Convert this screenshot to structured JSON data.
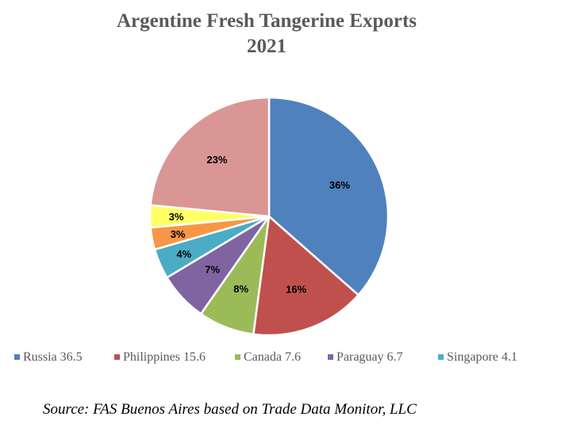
{
  "chart_data": {
    "type": "pie",
    "title": "Argentine Fresh Tangerine Exports",
    "subtitle": "2021",
    "slices": [
      {
        "label": "Russia",
        "value": 36.5,
        "percent_label": "36%",
        "color": "#4F81BD",
        "legend": "Russia 36.5"
      },
      {
        "label": "Philippines",
        "value": 15.6,
        "percent_label": "16%",
        "color": "#C0504D",
        "legend": "Philippines 15.6"
      },
      {
        "label": "Canada",
        "value": 7.6,
        "percent_label": "8%",
        "color": "#9BBB59",
        "legend": "Canada 7.6"
      },
      {
        "label": "Paraguay",
        "value": 6.7,
        "percent_label": "7%",
        "color": "#8064A2",
        "legend": "Paraguay 6.7"
      },
      {
        "label": "Singapore",
        "value": 4.1,
        "percent_label": "4%",
        "color": "#4BACC6",
        "legend": "Singapore 4.1"
      },
      {
        "label": "",
        "value": 3.0,
        "percent_label": "3%",
        "color": "#F79646",
        "legend": ""
      },
      {
        "label": "",
        "value": 3.0,
        "percent_label": "3%",
        "color": "#FFFF66",
        "legend": ""
      },
      {
        "label": "",
        "value": 23.5,
        "percent_label": "23%",
        "color": "#D99694",
        "legend": ""
      }
    ],
    "legend_position": "bottom",
    "source": "Source: FAS Buenos Aires based on Trade Data Monitor, LLC"
  }
}
